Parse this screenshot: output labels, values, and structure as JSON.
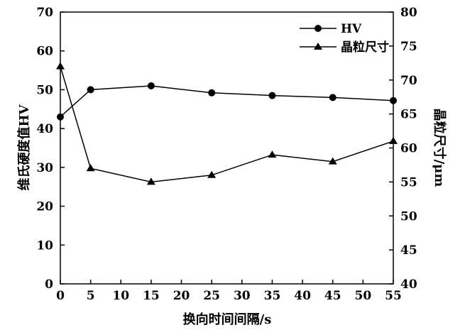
{
  "chart_data": {
    "type": "line",
    "x": [
      0,
      5,
      15,
      25,
      35,
      45,
      55
    ],
    "xlabel": "换向时间间隔/s",
    "ylabel_left": "维氏硬度值HV",
    "ylabel_right": "晶粒尺寸/μm",
    "xlim": [
      0,
      55
    ],
    "ylim_left": [
      0,
      70
    ],
    "ylim_right": [
      40,
      80
    ],
    "x_ticks": [
      "0",
      "5",
      "10",
      "15",
      "20",
      "25",
      "30",
      "35",
      "40",
      "45",
      "50",
      "55"
    ],
    "y_ticks_left": [
      "0",
      "10",
      "20",
      "30",
      "40",
      "50",
      "60",
      "70"
    ],
    "y_ticks_right": [
      "40",
      "45",
      "50",
      "55",
      "60",
      "65",
      "70",
      "75",
      "80"
    ],
    "grid": false,
    "legend_position": "top-right",
    "series": [
      {
        "name": "HV",
        "marker": "circle",
        "axis": "left",
        "values": [
          43,
          50,
          51,
          49.2,
          48.5,
          48,
          47.2
        ]
      },
      {
        "name": "晶粒尺寸",
        "marker": "triangle",
        "axis": "right",
        "values": [
          72,
          57,
          55,
          56,
          59,
          58,
          61
        ]
      }
    ]
  }
}
